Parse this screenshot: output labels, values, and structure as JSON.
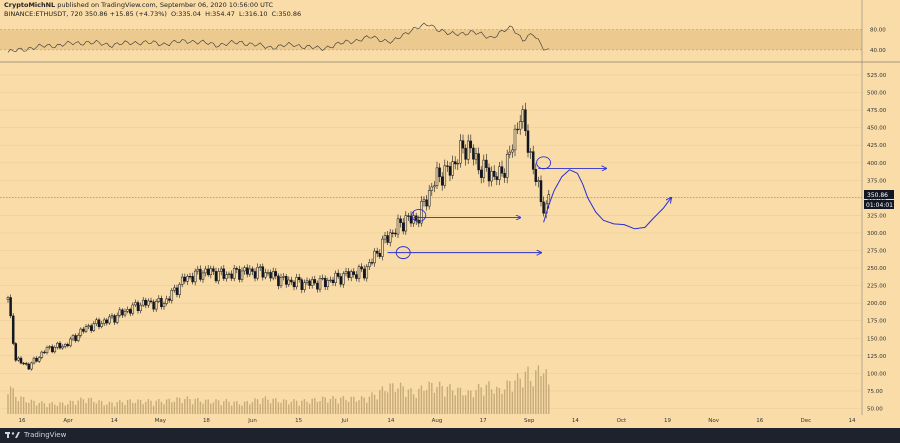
{
  "header": {
    "author": "CryptoMichNL",
    "published": "published on TradingView.com, September 06, 2020 10:56:00 UTC",
    "symbol": "BINANCE:ETHUSDT, 720",
    "last": "350.86",
    "change": "+15.85 (+4.73%)",
    "open": "O:",
    "open_val": "335.04",
    "high": "H:",
    "high_val": "354.47",
    "low": "L:",
    "low_val": "316.10",
    "close": "C:",
    "close_val": "350.86"
  },
  "footer": {
    "brand": "TradingView"
  },
  "colors": {
    "background": "#f9dca8",
    "candle": "#131722",
    "annotation": "#2a2fd0",
    "price_badge": "#131722"
  },
  "chart_data": {
    "type": "candlestick",
    "symbol": "ETHUSDT",
    "interval": "720",
    "price_axis": {
      "ticks": [
        525,
        500,
        475,
        450,
        425,
        400,
        375,
        350,
        325,
        300,
        275,
        250,
        225,
        200,
        175,
        150,
        125,
        100,
        75,
        50
      ],
      "labels": [
        "525.00",
        "500.00",
        "475.00",
        "450.00",
        "425.00",
        "400.00",
        "375.00",
        "350.00",
        "325.00",
        "300.00",
        "275.00",
        "250.00",
        "225.00",
        "200.00",
        "175.00",
        "150.00",
        "125.00",
        "100.00",
        "75.00",
        "50.00"
      ],
      "ylim": [
        45,
        535
      ]
    },
    "last_price_label": "350.86",
    "countdown_label": "01:04:01",
    "last_price": 350.86,
    "rsi_axis": {
      "ticks": [
        80,
        40
      ],
      "labels": [
        "80.00",
        "40.00"
      ],
      "ylim": [
        20,
        95
      ]
    },
    "x_labels": [
      "16",
      "Apr",
      "14",
      "May",
      "18",
      "Jun",
      "15",
      "Jul",
      "14",
      "Aug",
      "17",
      "Sep",
      "14",
      "Oct",
      "19",
      "Nov",
      "16",
      "Dec",
      "14"
    ],
    "price_path": [
      [
        0,
        205
      ],
      [
        3,
        120
      ],
      [
        8,
        110
      ],
      [
        15,
        135
      ],
      [
        22,
        140
      ],
      [
        30,
        165
      ],
      [
        38,
        175
      ],
      [
        46,
        190
      ],
      [
        52,
        200
      ],
      [
        60,
        200
      ],
      [
        68,
        235
      ],
      [
        76,
        245
      ],
      [
        84,
        240
      ],
      [
        90,
        245
      ],
      [
        98,
        245
      ],
      [
        106,
        232
      ],
      [
        114,
        228
      ],
      [
        122,
        230
      ],
      [
        130,
        240
      ],
      [
        137,
        245
      ],
      [
        142,
        272
      ],
      [
        145,
        290
      ],
      [
        149,
        305
      ],
      [
        153,
        320
      ],
      [
        156,
        318
      ],
      [
        158,
        325
      ],
      [
        161,
        350
      ],
      [
        165,
        380
      ],
      [
        170,
        390
      ],
      [
        174,
        415
      ],
      [
        177,
        425
      ],
      [
        181,
        395
      ],
      [
        185,
        385
      ],
      [
        189,
        380
      ],
      [
        193,
        410
      ],
      [
        197,
        470
      ],
      [
        200,
        430
      ],
      [
        202,
        390
      ],
      [
        205,
        350
      ],
      [
        207,
        330
      ],
      [
        208,
        350.86
      ]
    ],
    "volume_path": [
      [
        0,
        0.6
      ],
      [
        3,
        0.35
      ],
      [
        8,
        0.25
      ],
      [
        15,
        0.2
      ],
      [
        22,
        0.2
      ],
      [
        30,
        0.3
      ],
      [
        38,
        0.2
      ],
      [
        46,
        0.25
      ],
      [
        52,
        0.25
      ],
      [
        60,
        0.25
      ],
      [
        68,
        0.3
      ],
      [
        76,
        0.25
      ],
      [
        84,
        0.25
      ],
      [
        90,
        0.2
      ],
      [
        98,
        0.3
      ],
      [
        106,
        0.25
      ],
      [
        114,
        0.25
      ],
      [
        122,
        0.3
      ],
      [
        130,
        0.3
      ],
      [
        137,
        0.3
      ],
      [
        142,
        0.4
      ],
      [
        145,
        0.5
      ],
      [
        149,
        0.55
      ],
      [
        153,
        0.5
      ],
      [
        156,
        0.4
      ],
      [
        158,
        0.45
      ],
      [
        161,
        0.55
      ],
      [
        165,
        0.55
      ],
      [
        170,
        0.5
      ],
      [
        174,
        0.45
      ],
      [
        177,
        0.4
      ],
      [
        181,
        0.5
      ],
      [
        185,
        0.55
      ],
      [
        189,
        0.45
      ],
      [
        193,
        0.6
      ],
      [
        197,
        0.7
      ],
      [
        200,
        0.8
      ],
      [
        202,
        0.65
      ],
      [
        205,
        0.95
      ],
      [
        207,
        0.75
      ],
      [
        208,
        0.55
      ]
    ],
    "rsi_path": [
      [
        0,
        35
      ],
      [
        10,
        45
      ],
      [
        20,
        50
      ],
      [
        30,
        55
      ],
      [
        40,
        50
      ],
      [
        50,
        55
      ],
      [
        60,
        52
      ],
      [
        70,
        58
      ],
      [
        80,
        50
      ],
      [
        90,
        55
      ],
      [
        100,
        45
      ],
      [
        110,
        50
      ],
      [
        120,
        42
      ],
      [
        130,
        55
      ],
      [
        140,
        65
      ],
      [
        148,
        55
      ],
      [
        155,
        80
      ],
      [
        162,
        90
      ],
      [
        170,
        70
      ],
      [
        178,
        75
      ],
      [
        186,
        65
      ],
      [
        194,
        85
      ],
      [
        198,
        60
      ],
      [
        202,
        70
      ],
      [
        206,
        45
      ],
      [
        208,
        40
      ]
    ],
    "projection_path": [
      [
        206,
        315
      ],
      [
        208,
        340
      ],
      [
        210,
        360
      ],
      [
        213,
        380
      ],
      [
        216,
        390
      ],
      [
        219,
        385
      ],
      [
        221,
        370
      ],
      [
        223,
        350
      ],
      [
        226,
        330
      ],
      [
        229,
        318
      ],
      [
        233,
        313
      ],
      [
        237,
        312
      ],
      [
        241,
        306
      ],
      [
        245,
        308
      ],
      [
        248,
        320
      ],
      [
        252,
        335
      ],
      [
        255,
        350
      ]
    ],
    "horizontal_projections": [
      {
        "x_start": 204,
        "x_end": 230,
        "price": 392
      },
      {
        "x_start": 156,
        "x_end": 197,
        "price": 322
      },
      {
        "x_start": 146,
        "x_end": 205,
        "price": 272
      }
    ],
    "circled_levels": [
      {
        "x": 152,
        "price": 272
      },
      {
        "x": 158,
        "price": 325
      },
      {
        "x": 206,
        "price": 400
      }
    ]
  }
}
